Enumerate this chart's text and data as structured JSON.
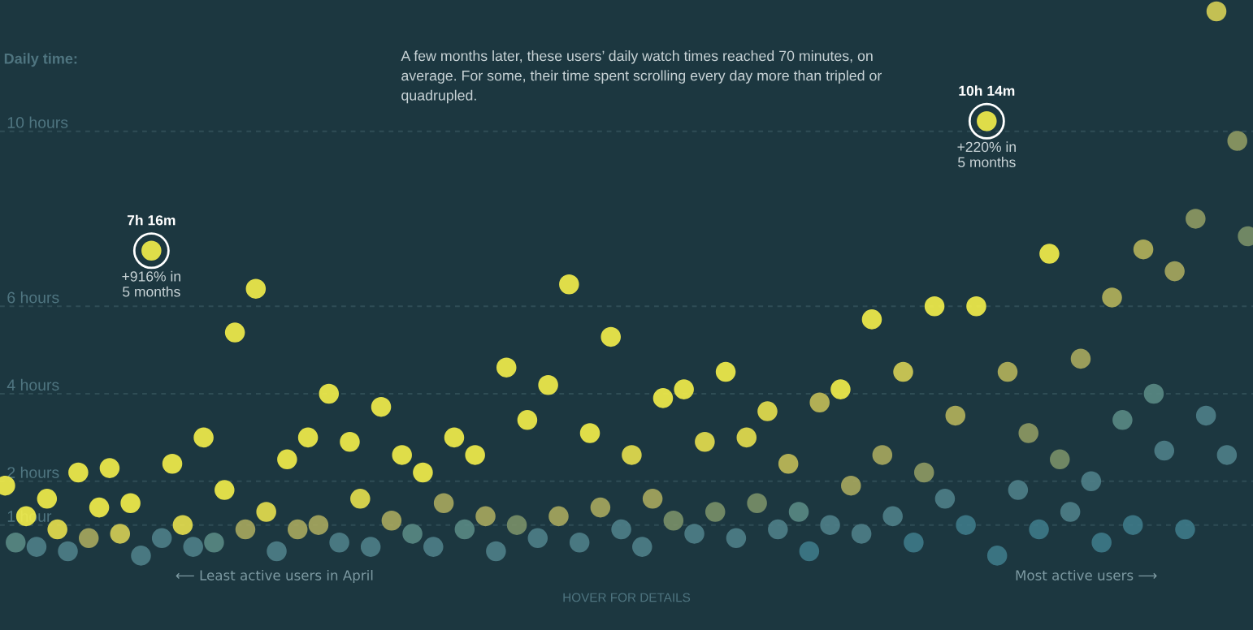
{
  "chart_data": {
    "type": "scatter",
    "ylabel": "Daily time:",
    "categories": [
      null,
      null,
      null,
      null,
      null,
      null,
      null,
      null,
      null,
      null,
      null,
      null,
      null,
      null,
      null,
      null,
      null,
      null,
      null,
      null,
      null,
      null,
      null,
      null,
      null,
      null,
      null,
      null,
      null,
      null,
      null,
      null,
      null,
      null,
      null,
      null,
      null,
      null,
      null,
      null,
      null,
      null,
      null,
      null,
      null,
      null,
      null,
      null,
      null,
      null,
      null,
      null,
      null,
      null,
      null,
      null,
      null,
      null,
      null,
      null,
      null,
      null,
      null,
      null,
      null,
      null,
      null,
      null,
      null,
      null,
      null,
      null,
      null,
      null,
      null,
      null,
      null,
      null,
      null,
      null,
      null,
      null,
      null,
      null,
      null,
      null,
      null,
      null,
      null,
      null,
      null,
      null,
      null,
      null,
      null,
      null,
      null,
      null,
      null,
      null,
      null,
      null,
      null,
      null,
      null,
      null,
      null,
      null,
      null,
      null,
      null,
      null,
      null,
      null,
      null,
      null,
      null,
      null,
      null,
      null
    ],
    "values": [
      1.9,
      0.6,
      1.2,
      0.5,
      1.6,
      0.9,
      0.4,
      2.2,
      0.7,
      1.4,
      2.3,
      0.8,
      1.5,
      0.3,
      7.27,
      0.7,
      2.4,
      1.0,
      0.5,
      3.0,
      0.6,
      1.8,
      5.4,
      0.9,
      6.4,
      1.3,
      0.4,
      2.5,
      0.9,
      3.0,
      1.0,
      4.0,
      0.6,
      2.9,
      1.6,
      0.5,
      3.7,
      1.1,
      2.6,
      0.8,
      2.2,
      0.5,
      1.5,
      3.0,
      0.9,
      2.6,
      1.2,
      0.4,
      4.6,
      1.0,
      3.4,
      0.7,
      4.2,
      1.2,
      6.5,
      0.6,
      3.1,
      1.4,
      5.3,
      0.9,
      2.6,
      0.5,
      1.6,
      3.9,
      1.1,
      4.1,
      0.8,
      2.9,
      1.3,
      4.5,
      0.7,
      3.0,
      1.5,
      3.6,
      0.9,
      2.4,
      1.3,
      0.4,
      3.8,
      1.0,
      4.1,
      1.9,
      0.8,
      5.7,
      2.6,
      1.2,
      4.5,
      0.6,
      2.2,
      6.0,
      1.6,
      3.5,
      1.0,
      6.0,
      10.23,
      0.3,
      4.5,
      1.8,
      3.1,
      0.9,
      7.2,
      2.5,
      1.3,
      4.8,
      2.0,
      0.6,
      6.2,
      3.4,
      1.0,
      7.3,
      4.0,
      2.7,
      6.8,
      0.9,
      8.0,
      3.5,
      12.74,
      2.6,
      9.78,
      7.6
    ],
    "colors": [
      "#f5ef4a",
      "#5a8a84",
      "#f5ef4a",
      "#4f8088",
      "#f5ef4a",
      "#e8e04e",
      "#4f8088",
      "#f5ef4a",
      "#a9a85e",
      "#f5ef4a",
      "#f5ef4a",
      "#d6cf55",
      "#f5ef4a",
      "#4f8088",
      "#f5ef4a",
      "#4f8088",
      "#f5ef4a",
      "#e8e04e",
      "#4f8088",
      "#f5ef4a",
      "#5a8a84",
      "#f5ef4a",
      "#f5ef4a",
      "#a9a85e",
      "#f5ef4a",
      "#e8e04e",
      "#4f8088",
      "#f5ef4a",
      "#a9a85e",
      "#f5ef4a",
      "#a9a85e",
      "#f5ef4a",
      "#4f8088",
      "#f5ef4a",
      "#e8e04e",
      "#4f8088",
      "#f5ef4a",
      "#a9a85e",
      "#f5ef4a",
      "#5a8a84",
      "#f5ef4a",
      "#4f8088",
      "#a9a85e",
      "#f5ef4a",
      "#5a8a84",
      "#f5ef4a",
      "#a9a85e",
      "#4f8088",
      "#f5ef4a",
      "#7a9068",
      "#f5ef4a",
      "#4f8088",
      "#f5ef4a",
      "#a9a85e",
      "#f5ef4a",
      "#4f8088",
      "#f5ef4a",
      "#a9a85e",
      "#f5ef4a",
      "#4f8088",
      "#e8e04e",
      "#4f8088",
      "#a9a85e",
      "#f5ef4a",
      "#7a9068",
      "#f5ef4a",
      "#4f8088",
      "#e8e04e",
      "#7a9068",
      "#f5ef4a",
      "#4f8088",
      "#e8e04e",
      "#7a9068",
      "#e8e04e",
      "#4f8088",
      "#c2bd58",
      "#5a8a84",
      "#3e7a88",
      "#c2bd58",
      "#4f8088",
      "#f5ef4a",
      "#a9a85e",
      "#4f8088",
      "#f5ef4a",
      "#a9a85e",
      "#4f8088",
      "#d6cf55",
      "#3e7a88",
      "#8f9a63",
      "#f5ef4a",
      "#4f8088",
      "#b5b25b",
      "#3e7a88",
      "#f5ef4a",
      "#f5ef4a",
      "#3e7a88",
      "#b5b25b",
      "#4f8088",
      "#8f9a63",
      "#3e7a88",
      "#f5ef4a",
      "#7a9068",
      "#4f8088",
      "#a9a85e",
      "#4f8088",
      "#3e7a88",
      "#b5b25b",
      "#5a8a84",
      "#3e7a88",
      "#b5b25b",
      "#5a8a84",
      "#4f8088",
      "#a9a85e",
      "#3e7a88",
      "#8f9a63",
      "#4f8088",
      "#d6cf55",
      "#4f8088",
      "#8f9a63",
      "#7a9068"
    ],
    "ylim": [
      -1.4,
      13
    ],
    "yticks": [
      {
        "value": 1,
        "label": "1 hour"
      },
      {
        "value": 2,
        "label": "2 hours"
      },
      {
        "value": 4,
        "label": "4 hours"
      },
      {
        "value": 6,
        "label": "6 hours"
      },
      {
        "value": 10,
        "label": "10 hours"
      }
    ],
    "grid": "y",
    "tick_labels": "y",
    "marker": "circle",
    "annotations": [
      {
        "text": "7h 16m",
        "y": 7.27
      },
      {
        "text": "+916% in\n5 months",
        "y": 7.27
      },
      {
        "text": "10h 14m",
        "y": 10.23
      },
      {
        "text": "+220% in\n5 months",
        "y": 10.23
      },
      "A few months later, these users’ daily watch times reached 70 minutes, on\naverage. For some, their time spent scrolling every day more than tripled or\nquadrupled.",
      "⟵ Least active users in April",
      "Most active users ⟶",
      "HOVER FOR DETAILS"
    ]
  }
}
